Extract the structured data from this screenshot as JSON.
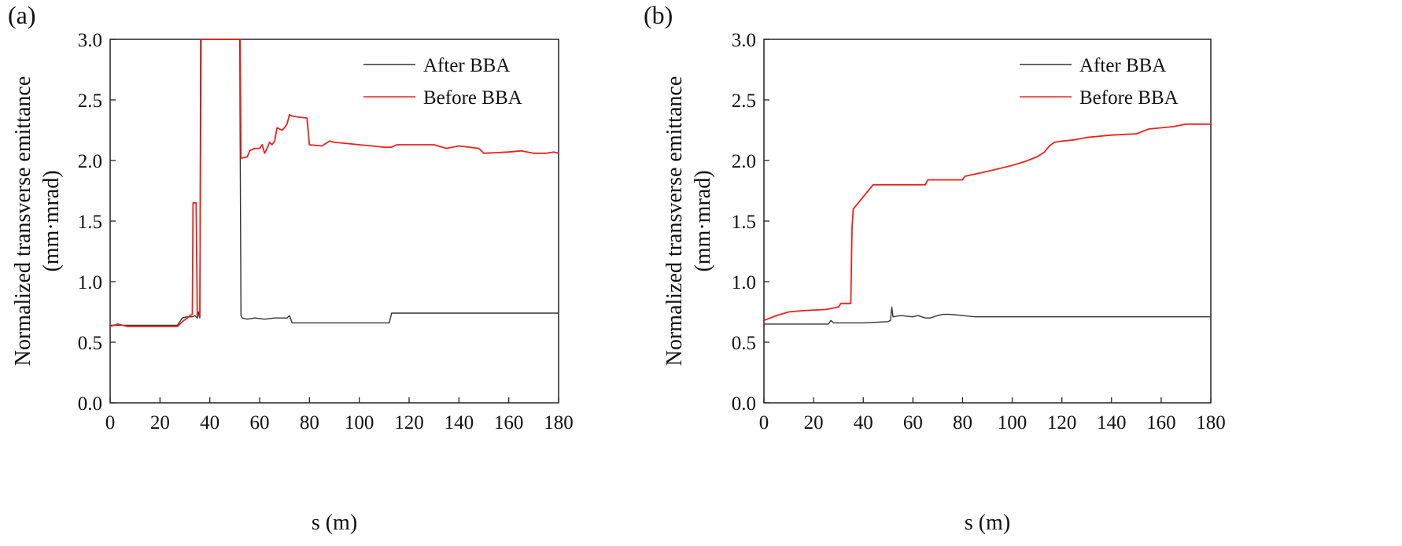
{
  "chart_data": [
    {
      "type": "line",
      "panel_label": "(a)",
      "xlabel": "s (m)",
      "ylabel_line1": "Normalized transverse emittance",
      "ylabel_line2": "(mm·mrad)",
      "xlim": [
        0,
        180
      ],
      "ylim": [
        0,
        3.0
      ],
      "xticks": [
        "0",
        "20",
        "40",
        "60",
        "80",
        "100",
        "120",
        "140",
        "160",
        "180"
      ],
      "yticks": [
        "0.0",
        "0.5",
        "1.0",
        "1.5",
        "2.0",
        "2.5",
        "3.0"
      ],
      "legend_position": "top-right",
      "series": [
        {
          "name": "After BBA",
          "color": "#333333",
          "x": [
            0,
            10,
            20,
            27,
            29,
            31,
            33,
            34,
            35,
            35.5,
            36,
            36.3,
            36.6,
            37,
            51,
            52,
            52.2,
            52.5,
            53,
            55,
            58,
            62,
            66,
            70,
            71,
            72,
            73,
            80,
            90,
            100,
            112,
            113,
            115,
            130,
            150,
            170,
            180
          ],
          "y": [
            0.64,
            0.64,
            0.64,
            0.64,
            0.7,
            0.71,
            0.71,
            0.72,
            0.7,
            0.75,
            0.7,
            3.0,
            3.0,
            3.0,
            3.0,
            3.0,
            2.1,
            0.72,
            0.7,
            0.69,
            0.7,
            0.69,
            0.7,
            0.7,
            0.7,
            0.72,
            0.66,
            0.66,
            0.66,
            0.66,
            0.66,
            0.74,
            0.74,
            0.74,
            0.74,
            0.74,
            0.74
          ]
        },
        {
          "name": "Before BBA",
          "color": "#e8231c",
          "x": [
            0,
            3,
            5,
            7,
            15,
            27,
            29,
            31,
            32,
            33,
            33.3,
            34.5,
            35,
            36,
            36.5,
            52,
            52.2,
            52.5,
            53,
            55,
            56,
            58,
            60,
            61,
            62,
            63,
            64,
            65,
            66,
            67,
            68,
            69,
            70,
            71,
            72,
            72.5,
            75,
            79,
            80,
            85,
            88,
            90,
            95,
            100,
            105,
            110,
            113,
            115,
            125,
            130,
            135,
            140,
            148,
            150,
            160,
            165,
            170,
            175,
            178,
            180
          ],
          "y": [
            0.63,
            0.65,
            0.64,
            0.63,
            0.63,
            0.63,
            0.67,
            0.7,
            0.72,
            0.73,
            1.65,
            1.65,
            0.72,
            0.72,
            3.0,
            3.0,
            3.0,
            2.02,
            2.02,
            2.03,
            2.08,
            2.1,
            2.1,
            2.13,
            2.06,
            2.1,
            2.15,
            2.13,
            2.16,
            2.27,
            2.26,
            2.25,
            2.27,
            2.3,
            2.38,
            2.37,
            2.36,
            2.35,
            2.13,
            2.12,
            2.16,
            2.15,
            2.14,
            2.13,
            2.12,
            2.11,
            2.11,
            2.13,
            2.13,
            2.13,
            2.1,
            2.12,
            2.1,
            2.06,
            2.07,
            2.08,
            2.06,
            2.06,
            2.07,
            2.06
          ]
        }
      ]
    },
    {
      "type": "line",
      "panel_label": "(b)",
      "xlabel": "s (m)",
      "ylabel_line1": "Normalized transverse emittance",
      "ylabel_line2": "(mm·mrad)",
      "xlim": [
        0,
        180
      ],
      "ylim": [
        0,
        3.0
      ],
      "xticks": [
        "0",
        "20",
        "40",
        "60",
        "80",
        "100",
        "120",
        "140",
        "160",
        "180"
      ],
      "yticks": [
        "0.0",
        "0.5",
        "1.0",
        "1.5",
        "2.0",
        "2.5",
        "3.0"
      ],
      "legend_position": "top-right",
      "series": [
        {
          "name": "After BBA",
          "color": "#333333",
          "x": [
            0,
            10,
            20,
            26,
            27,
            28,
            40,
            50,
            51,
            51.5,
            52,
            55,
            60,
            62,
            65,
            67,
            70,
            72,
            75,
            80,
            85,
            90,
            100,
            120,
            140,
            160,
            180
          ],
          "y": [
            0.65,
            0.65,
            0.65,
            0.65,
            0.68,
            0.66,
            0.66,
            0.67,
            0.68,
            0.79,
            0.71,
            0.72,
            0.71,
            0.72,
            0.7,
            0.7,
            0.72,
            0.73,
            0.73,
            0.72,
            0.71,
            0.71,
            0.71,
            0.71,
            0.71,
            0.71,
            0.71
          ]
        },
        {
          "name": "Before BBA",
          "color": "#e8231c",
          "x": [
            0,
            5,
            10,
            15,
            25,
            30,
            31,
            35,
            35.5,
            36,
            38,
            40,
            42,
            44,
            60,
            65,
            66,
            80,
            81,
            90,
            100,
            105,
            110,
            113,
            115,
            117,
            120,
            125,
            130,
            140,
            150,
            155,
            165,
            170,
            180
          ],
          "y": [
            0.68,
            0.72,
            0.75,
            0.76,
            0.77,
            0.79,
            0.82,
            0.82,
            1.45,
            1.6,
            1.65,
            1.7,
            1.75,
            1.8,
            1.8,
            1.8,
            1.84,
            1.84,
            1.87,
            1.91,
            1.96,
            1.99,
            2.03,
            2.07,
            2.12,
            2.15,
            2.16,
            2.17,
            2.19,
            2.21,
            2.22,
            2.26,
            2.28,
            2.3,
            2.3
          ]
        }
      ]
    }
  ]
}
